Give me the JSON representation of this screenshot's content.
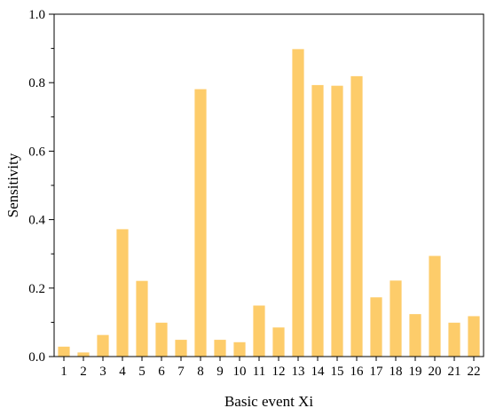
{
  "chart_data": {
    "type": "bar",
    "title": "",
    "xlabel": "Basic event Xi",
    "ylabel": "Sensitivity",
    "ylim": [
      0,
      1.0
    ],
    "yticks": [
      "0.0",
      "0.2",
      "0.4",
      "0.6",
      "0.8",
      "1.0"
    ],
    "categories": [
      "1",
      "2",
      "3",
      "4",
      "5",
      "6",
      "7",
      "8",
      "9",
      "10",
      "11",
      "12",
      "13",
      "14",
      "15",
      "16",
      "17",
      "18",
      "19",
      "20",
      "21",
      "22"
    ],
    "values": [
      0.029,
      0.012,
      0.063,
      0.372,
      0.221,
      0.099,
      0.049,
      0.781,
      0.049,
      0.042,
      0.149,
      0.085,
      0.898,
      0.793,
      0.791,
      0.819,
      0.173,
      0.222,
      0.124,
      0.294,
      0.099,
      0.118
    ],
    "bar_color": "#FDCC6A",
    "grid": false,
    "legend": "none"
  }
}
